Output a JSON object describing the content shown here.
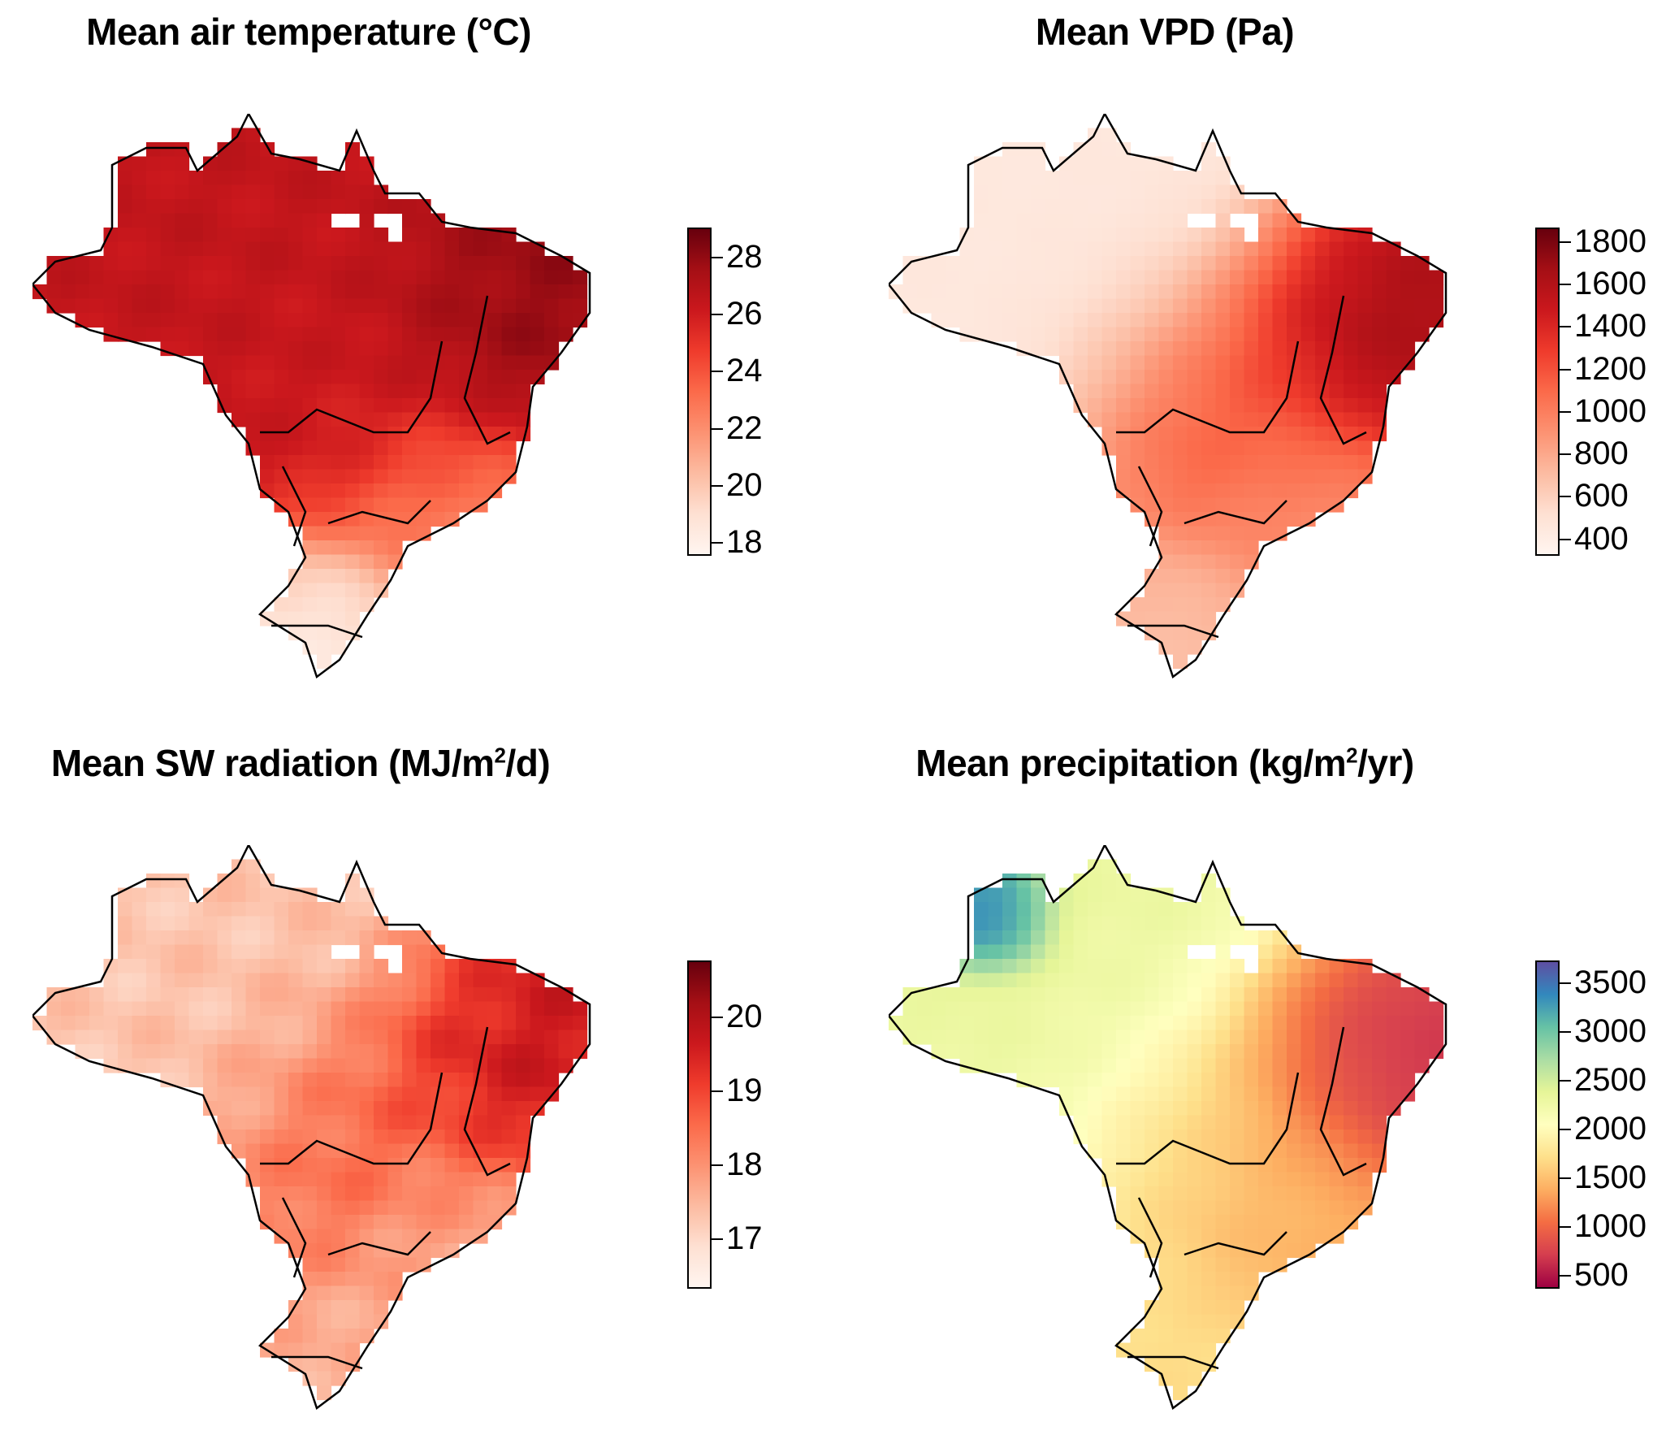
{
  "figure": {
    "description": "Four gridded maps of Brazil showing mean climate variables"
  },
  "chart_data": [
    {
      "type": "heatmap",
      "id": "temperature",
      "title": "Mean air temperature (°C)",
      "title_main": "Mean air temperature (°C)",
      "title_sup": "",
      "title_tail": "",
      "colorbar": {
        "range": [
          17.6,
          29.0
        ],
        "ticks": [
          18,
          20,
          22,
          24,
          26,
          28
        ],
        "tick_labels": [
          "18",
          "20",
          "22",
          "24",
          "26",
          "28"
        ],
        "colors": [
          "#fff5f0",
          "#fee0d2",
          "#fcbba1",
          "#fc9272",
          "#fb6a4a",
          "#ef3b2c",
          "#cb181d",
          "#a50f15",
          "#67000d"
        ]
      },
      "spatial_pattern": {
        "north_amazon": 26.5,
        "northeast_interior": 28.0,
        "central": 26.0,
        "southeast": 22.0,
        "south": 18.5
      }
    },
    {
      "type": "heatmap",
      "id": "vpd",
      "title": "Mean VPD (Pa)",
      "title_main": "Mean VPD (Pa)",
      "title_sup": "",
      "title_tail": "",
      "colorbar": {
        "range": [
          330,
          1860
        ],
        "ticks": [
          400,
          600,
          800,
          1000,
          1200,
          1400,
          1600,
          1800
        ],
        "tick_labels": [
          "400",
          "600",
          "800",
          "1000",
          "1200",
          "1400",
          "1600",
          "1800"
        ],
        "colors": [
          "#fff5f0",
          "#fee0d2",
          "#fcbba1",
          "#fc9272",
          "#fb6a4a",
          "#ef3b2c",
          "#cb181d",
          "#a50f15",
          "#67000d"
        ]
      },
      "spatial_pattern": {
        "north_amazon": 450,
        "northeast_interior": 1700,
        "central": 1250,
        "southeast": 900,
        "south": 700
      }
    },
    {
      "type": "heatmap",
      "id": "sw-radiation",
      "title": "Mean SW radiation (MJ/m2/d)",
      "title_main": "Mean SW radiation (MJ/m",
      "title_sup": "2",
      "title_tail": "/d)",
      "colorbar": {
        "range": [
          16.35,
          20.75
        ],
        "ticks": [
          17,
          18,
          19,
          20
        ],
        "tick_labels": [
          "17",
          "18",
          "19",
          "20"
        ],
        "colors": [
          "#fff5f0",
          "#fee0d2",
          "#fcbba1",
          "#fc9272",
          "#fb6a4a",
          "#ef3b2c",
          "#cb181d",
          "#a50f15",
          "#67000d"
        ]
      },
      "spatial_pattern": {
        "north_amazon": 17.3,
        "northeast_interior": 19.8,
        "central": 18.8,
        "southeast": 17.5,
        "south": 17.6
      }
    },
    {
      "type": "heatmap",
      "id": "precipitation",
      "title": "Mean precipitation (kg/m2/yr)",
      "title_main": "Mean precipitation (kg/m",
      "title_sup": "2",
      "title_tail": "/yr)",
      "colorbar": {
        "range": [
          380,
          3720
        ],
        "ticks": [
          500,
          1000,
          1500,
          2000,
          2500,
          3000,
          3500
        ],
        "tick_labels": [
          "500",
          "1000",
          "1500",
          "2000",
          "2500",
          "3000",
          "3500"
        ],
        "colors": [
          "#9e0142",
          "#d53e4f",
          "#f46d43",
          "#fdae61",
          "#fee08b",
          "#ffffbf",
          "#e6f598",
          "#abdda4",
          "#66c2a5",
          "#3288bd",
          "#5e4fa2"
        ]
      },
      "spatial_pattern": {
        "north_amazon": 2300,
        "northwest_peak": 3500,
        "northeast_interior": 600,
        "central": 1500,
        "southeast": 1400,
        "south": 1700
      }
    }
  ]
}
